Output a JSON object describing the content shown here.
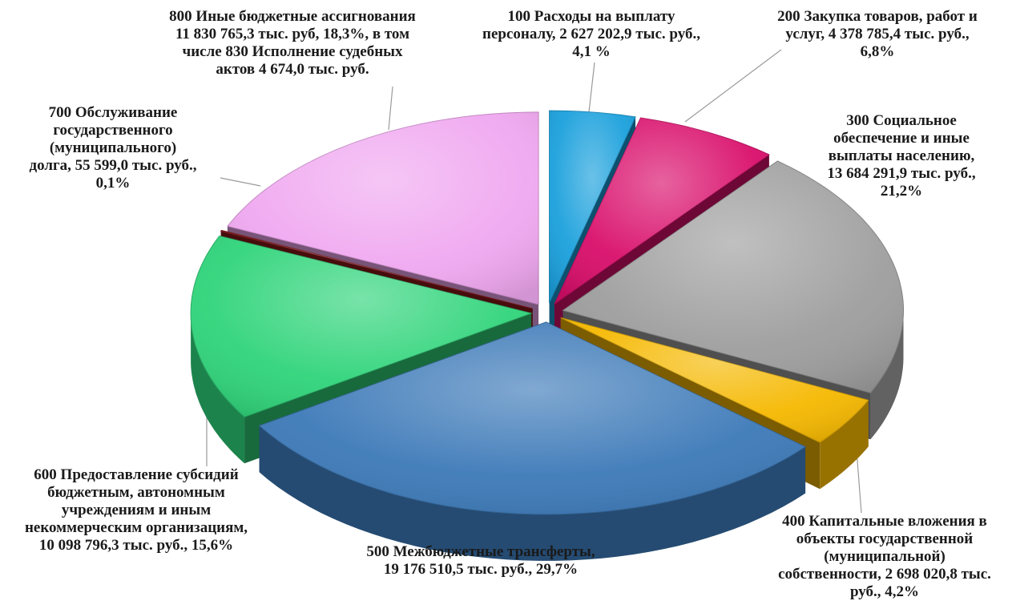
{
  "chart_data": {
    "type": "pie",
    "style": "3d-exploded",
    "title": "",
    "legend": "none",
    "slices": [
      {
        "name": "100 Расходы на выплату персоналу",
        "value": 2627202.9,
        "percent": 4.1,
        "color": "#1aa0dc",
        "label": "100 Расходы на выплату\nперсоналу, 2 627 202,9 тыс. руб.,\n4,1 %"
      },
      {
        "name": "200 Закупка товаров, работ и услуг",
        "value": 4378785.4,
        "percent": 6.8,
        "color": "#d90e6b",
        "label": "200 Закупка товаров, работ и\nуслуг, 4 378 785,4 тыс. руб.,\n6,8%"
      },
      {
        "name": "300 Социальное обеспечение и иные выплаты населению",
        "value": 13684291.9,
        "percent": 21.2,
        "color": "#9e9e9e",
        "label": "300 Социальное\nобеспечение и иные\nвыплаты населению,\n13 684 291,9 тыс. руб.,\n21,2%"
      },
      {
        "name": "400 Капитальные вложения в объекты государственной (муниципальной) собственности",
        "value": 2698020.8,
        "percent": 4.2,
        "color": "#f5b800",
        "label": "400 Капитальные вложения в\nобъекты государственной\n(муниципальной)\nсобственности, 2 698 020,8 тыс.\nруб., 4,2%"
      },
      {
        "name": "500 Межбюджетные трансферты",
        "value": 19176510.5,
        "percent": 29.7,
        "color": "#3c79b8",
        "label": "500 Межбюджетные трансферты,\n19 176 510,5 тыс. руб., 29,7%"
      },
      {
        "name": "600 Предоставление субсидий бюджетным, автономным учреждениям и иным некоммерческим организациям",
        "value": 10098796.3,
        "percent": 15.6,
        "color": "#2fd47a",
        "label": "600 Предоставление субсидий\nбюджетным, автономным\nучреждениям и иным\nнекоммерческим организациям,\n10 098 796,3 тыс. руб., 15,6%"
      },
      {
        "name": "700 Обслуживание государственного (муниципального) долга",
        "value": 55599.0,
        "percent": 0.1,
        "color": "#8b1a1a",
        "label": "700 Обслуживание\nгосударственного\n(муниципального)\nдолга, 55 599,0 тыс. руб.,\n0,1%"
      },
      {
        "name": "800 Иные бюджетные ассигнования",
        "value": 11830765.3,
        "percent": 18.3,
        "color": "#f0a8f0",
        "label": "800 Иные бюджетные ассигнования\n11 830 765,3 тыс. руб, 18,3%, в том\nчисле 830 Исполнение судебных\nактов 4 674,0 тыс. руб."
      }
    ]
  }
}
